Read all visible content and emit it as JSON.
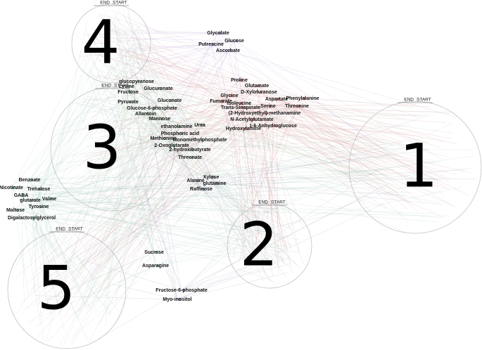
{
  "clusters": [
    {
      "label": "1",
      "end": "END",
      "start": "START"
    },
    {
      "label": "2",
      "end": "END",
      "start": "START"
    },
    {
      "label": "3",
      "end": "END",
      "start": "START"
    },
    {
      "label": "4",
      "end": "END",
      "start": "START"
    },
    {
      "label": "5",
      "end": "END",
      "start": "START"
    }
  ],
  "nodes": [
    {
      "label": "Glycolate"
    },
    {
      "label": "Glucose"
    },
    {
      "label": "Putrescine"
    },
    {
      "label": "Ascorbate"
    },
    {
      "label": "Proline"
    },
    {
      "label": "Glutamate"
    },
    {
      "label": "D-Xylofuranose"
    },
    {
      "label": "Phenylalanine"
    },
    {
      "label": "Aspartate"
    },
    {
      "label": "Glycine"
    },
    {
      "label": "Fumarate"
    },
    {
      "label": "Isoleucine"
    },
    {
      "label": "Serine"
    },
    {
      "label": "Threonine"
    },
    {
      "label": "Trans-Sinapinate"
    },
    {
      "label": "(2-Hydroxyethyl)-methanamine"
    },
    {
      "label": "N-Acetylglutamate"
    },
    {
      "label": "1-6-Anhydroglucose"
    },
    {
      "label": "Hydroxylamine"
    },
    {
      "label": "glucopyranose"
    },
    {
      "label": "Lysine"
    },
    {
      "label": "Glucuronate"
    },
    {
      "label": "Fructose"
    },
    {
      "label": "Gluconate"
    },
    {
      "label": "Pyruvate"
    },
    {
      "label": "Glucose-6-phosphate"
    },
    {
      "label": "Allantoin"
    },
    {
      "label": "Mannose"
    },
    {
      "label": "Urea"
    },
    {
      "label": "ethanolamine"
    },
    {
      "label": "Phosphoric acid"
    },
    {
      "label": "Methionine"
    },
    {
      "label": "Monomethylphosphate"
    },
    {
      "label": "2-Oxoglutarate"
    },
    {
      "label": "2-hydroxibutyrate"
    },
    {
      "label": "Threonate"
    },
    {
      "label": "Xylose"
    },
    {
      "label": "Alanine"
    },
    {
      "label": "glutamine"
    },
    {
      "label": "Raffinose"
    },
    {
      "label": "Benzoate"
    },
    {
      "label": "Nicotinate"
    },
    {
      "label": "Trehalose"
    },
    {
      "label": "GABA"
    },
    {
      "label": "Valine"
    },
    {
      "label": "glutarate"
    },
    {
      "label": "Tyrosine"
    },
    {
      "label": "Maltose"
    },
    {
      "label": "Digalactosylglycerol"
    },
    {
      "label": "Sucrose"
    },
    {
      "label": "Asparagine"
    },
    {
      "label": "Fructose-6-phosphate"
    },
    {
      "label": "Myo-inositol"
    }
  ]
}
